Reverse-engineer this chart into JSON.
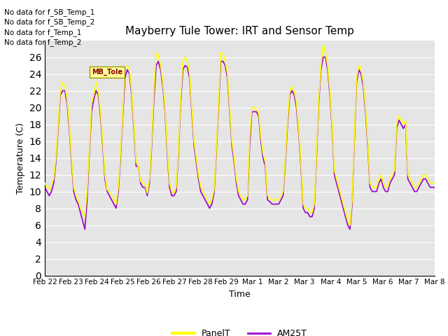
{
  "title": "Mayberry Tule Tower: IRT and Sensor Temp",
  "ylabel": "Temperature (C)",
  "xlabel": "Time",
  "ylim": [
    0,
    28
  ],
  "yticks": [
    0,
    2,
    4,
    6,
    8,
    10,
    12,
    14,
    16,
    18,
    20,
    22,
    24,
    26
  ],
  "panel_color": "#ffff00",
  "am25_color": "#9900cc",
  "legend_labels": [
    "PanelT",
    "AM25T"
  ],
  "no_data_texts": [
    "No data for f_SB_Temp_1",
    "No data for f_SB_Temp_2",
    "No data for f_Temp_1",
    "No data for f_Temp_2"
  ],
  "bg_color": "#e5e5e5",
  "grid_color": "#ffffff",
  "xtick_labels": [
    "Feb 22",
    "Feb 23",
    "Feb 24",
    "Feb 25",
    "Feb 26",
    "Feb 27",
    "Feb 28",
    "Feb 29",
    "Mar 1",
    "Mar 2",
    "Mar 3",
    "Mar 4",
    "Mar 5",
    "Mar 6",
    "Mar 7",
    "Mar 8"
  ],
  "panel_t": [
    11.0,
    10.5,
    10.2,
    10.8,
    11.5,
    14.0,
    18.0,
    22.0,
    23.0,
    22.5,
    21.0,
    18.0,
    14.0,
    10.5,
    9.5,
    9.0,
    8.0,
    7.5,
    7.0,
    10.0,
    15.0,
    20.5,
    21.5,
    23.0,
    22.0,
    19.5,
    16.0,
    12.0,
    10.2,
    10.0,
    9.5,
    9.0,
    8.5,
    10.5,
    14.5,
    19.5,
    24.8,
    25.0,
    24.5,
    22.0,
    18.0,
    13.5,
    13.0,
    11.2,
    11.0,
    10.8,
    9.8,
    11.5,
    16.0,
    22.0,
    26.5,
    26.2,
    25.0,
    23.0,
    20.0,
    15.0,
    11.0,
    10.0,
    9.8,
    10.5,
    15.0,
    21.0,
    25.5,
    26.0,
    25.5,
    24.0,
    20.0,
    16.0,
    14.0,
    12.0,
    10.5,
    10.0,
    9.5,
    9.0,
    8.5,
    9.0,
    10.2,
    15.0,
    20.5,
    26.5,
    26.5,
    25.5,
    24.0,
    20.0,
    16.0,
    14.0,
    11.5,
    10.0,
    9.5,
    9.0,
    9.0,
    9.5,
    16.5,
    20.0,
    20.0,
    19.8,
    19.5,
    16.5,
    14.5,
    13.5,
    9.5,
    9.2,
    9.0,
    9.0,
    9.0,
    9.0,
    9.5,
    10.0,
    14.0,
    18.5,
    22.0,
    22.5,
    22.0,
    20.5,
    17.5,
    13.5,
    8.5,
    8.0,
    8.0,
    7.5,
    7.5,
    8.5,
    14.5,
    21.0,
    25.0,
    27.5,
    26.5,
    25.0,
    22.0,
    18.0,
    12.5,
    11.5,
    10.5,
    9.5,
    8.5,
    7.5,
    6.5,
    6.0,
    9.0,
    16.5,
    23.5,
    25.0,
    24.5,
    23.0,
    20.0,
    16.0,
    11.0,
    10.5,
    10.5,
    10.5,
    11.5,
    12.0,
    11.0,
    10.5,
    10.5,
    11.5,
    12.0,
    12.5,
    18.0,
    19.0,
    18.5,
    18.0,
    18.5,
    12.0,
    11.5,
    11.0,
    10.5,
    10.5,
    11.0,
    11.5,
    12.0,
    12.0,
    11.5,
    11.0,
    11.0,
    11.0
  ],
  "am25_t": [
    10.5,
    10.0,
    9.5,
    10.0,
    11.0,
    13.5,
    17.5,
    21.5,
    22.0,
    22.0,
    20.5,
    17.5,
    13.5,
    10.0,
    9.0,
    8.5,
    7.5,
    6.5,
    5.5,
    9.0,
    14.5,
    19.5,
    21.0,
    22.0,
    21.5,
    19.0,
    15.5,
    11.5,
    10.0,
    9.5,
    9.0,
    8.5,
    8.0,
    10.0,
    14.0,
    19.0,
    23.5,
    24.5,
    24.0,
    21.5,
    17.5,
    13.0,
    13.0,
    11.0,
    10.5,
    10.5,
    9.5,
    11.0,
    15.5,
    21.0,
    25.0,
    25.5,
    24.5,
    22.5,
    19.5,
    14.5,
    10.5,
    9.5,
    9.5,
    10.0,
    14.5,
    20.5,
    24.5,
    25.0,
    24.8,
    23.5,
    19.5,
    15.5,
    13.5,
    11.5,
    10.0,
    9.5,
    9.0,
    8.5,
    8.0,
    8.5,
    9.8,
    14.5,
    20.0,
    25.5,
    25.5,
    25.0,
    23.5,
    19.5,
    15.5,
    13.5,
    11.0,
    9.5,
    9.0,
    8.5,
    8.5,
    9.0,
    15.5,
    19.5,
    19.5,
    19.5,
    19.0,
    16.0,
    14.0,
    13.0,
    9.0,
    8.8,
    8.5,
    8.5,
    8.5,
    8.5,
    9.0,
    9.5,
    13.5,
    18.0,
    21.5,
    22.0,
    21.5,
    20.0,
    17.0,
    13.0,
    8.0,
    7.5,
    7.5,
    7.0,
    7.0,
    8.0,
    14.0,
    20.5,
    24.5,
    26.0,
    26.0,
    24.5,
    21.5,
    17.5,
    12.0,
    11.0,
    10.0,
    9.0,
    8.0,
    7.0,
    6.0,
    5.5,
    8.5,
    16.0,
    23.0,
    24.5,
    24.0,
    22.5,
    19.5,
    15.5,
    10.5,
    10.0,
    10.0,
    10.0,
    11.0,
    11.5,
    10.5,
    10.0,
    10.0,
    11.0,
    11.5,
    12.0,
    17.5,
    18.5,
    18.0,
    17.5,
    18.0,
    11.5,
    11.0,
    10.5,
    10.0,
    10.0,
    10.5,
    11.0,
    11.5,
    11.5,
    11.0,
    10.5,
    10.5,
    10.5
  ],
  "tooltip_text": "MB_Tole",
  "figsize": [
    6.4,
    4.8
  ],
  "dpi": 100
}
